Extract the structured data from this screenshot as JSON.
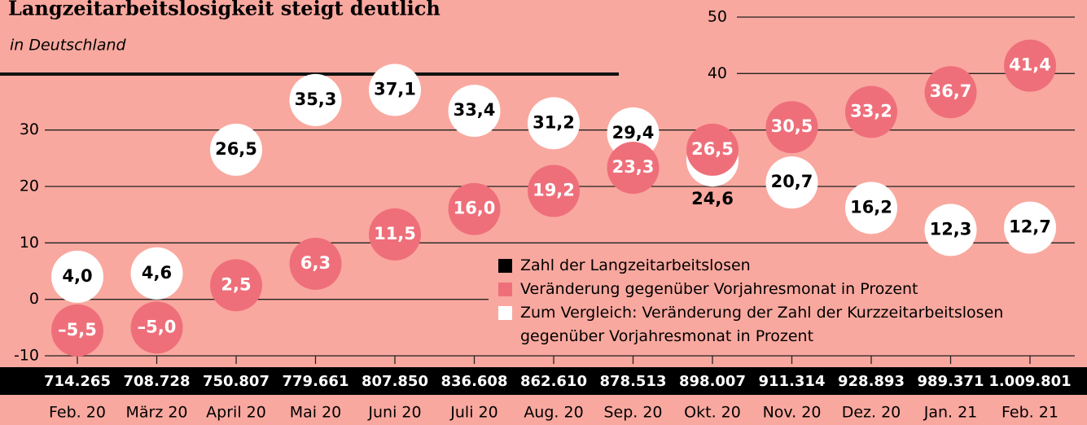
{
  "chart_data": {
    "type": "bubble-dots",
    "title": "Langzeitarbeitslosigkeit steigt deutlich",
    "subtitle": "in Deutschland",
    "categories": [
      "Feb. 20",
      "März 20",
      "April 20",
      "Mai 20",
      "Juni 20",
      "Juli 20",
      "Aug. 20",
      "Sep. 20",
      "Okt. 20",
      "Nov. 20",
      "Dez. 20",
      "Jan. 21",
      "Feb. 21"
    ],
    "ylim": [
      -10,
      50
    ],
    "yticks": [
      -10,
      0,
      10,
      20,
      30,
      40,
      50
    ],
    "grid": true,
    "background": "#f9a89f",
    "series": [
      {
        "name": "Zahl der Langzeitarbeitslosen",
        "color": "#000000",
        "values": [
          714265,
          708728,
          750807,
          779661,
          807850,
          836608,
          862610,
          878513,
          898007,
          911314,
          928893,
          989371,
          1009801
        ],
        "value_labels": [
          "714.265",
          "708.728",
          "750.807",
          "779.661",
          "807.850",
          "836.608",
          "862.610",
          "878.513",
          "898.007",
          "911.314",
          "928.893",
          "989.371",
          "1.009.801"
        ]
      },
      {
        "name": "Veränderung gegenüber Vorjahresmonat in Prozent",
        "color": "#ee6f7a",
        "values": [
          -5.5,
          -5.0,
          2.5,
          6.3,
          11.5,
          16.0,
          19.2,
          23.3,
          26.5,
          30.5,
          33.2,
          36.7,
          41.4
        ],
        "value_labels": [
          "–5,5",
          "–5,0",
          "2,5",
          "6,3",
          "11,5",
          "16,0",
          "19,2",
          "23,3",
          "26,5",
          "30,5",
          "33,2",
          "36,7",
          "41,4"
        ]
      },
      {
        "name": "Zum Vergleich: Veränderung der Zahl der Kurzzeitarbeitslosen gegenüber Vorjahresmonat in Prozent",
        "color": "#ffffff",
        "values": [
          4.0,
          4.6,
          26.5,
          35.3,
          37.1,
          33.4,
          31.2,
          29.4,
          24.6,
          20.7,
          16.2,
          12.3,
          12.7
        ],
        "value_labels": [
          "4,0",
          "4,6",
          "26,5",
          "35,3",
          "37,1",
          "33,4",
          "31,2",
          "29,4",
          "24,6",
          "20,7",
          "16,2",
          "12,3",
          "12,7"
        ]
      }
    ]
  }
}
